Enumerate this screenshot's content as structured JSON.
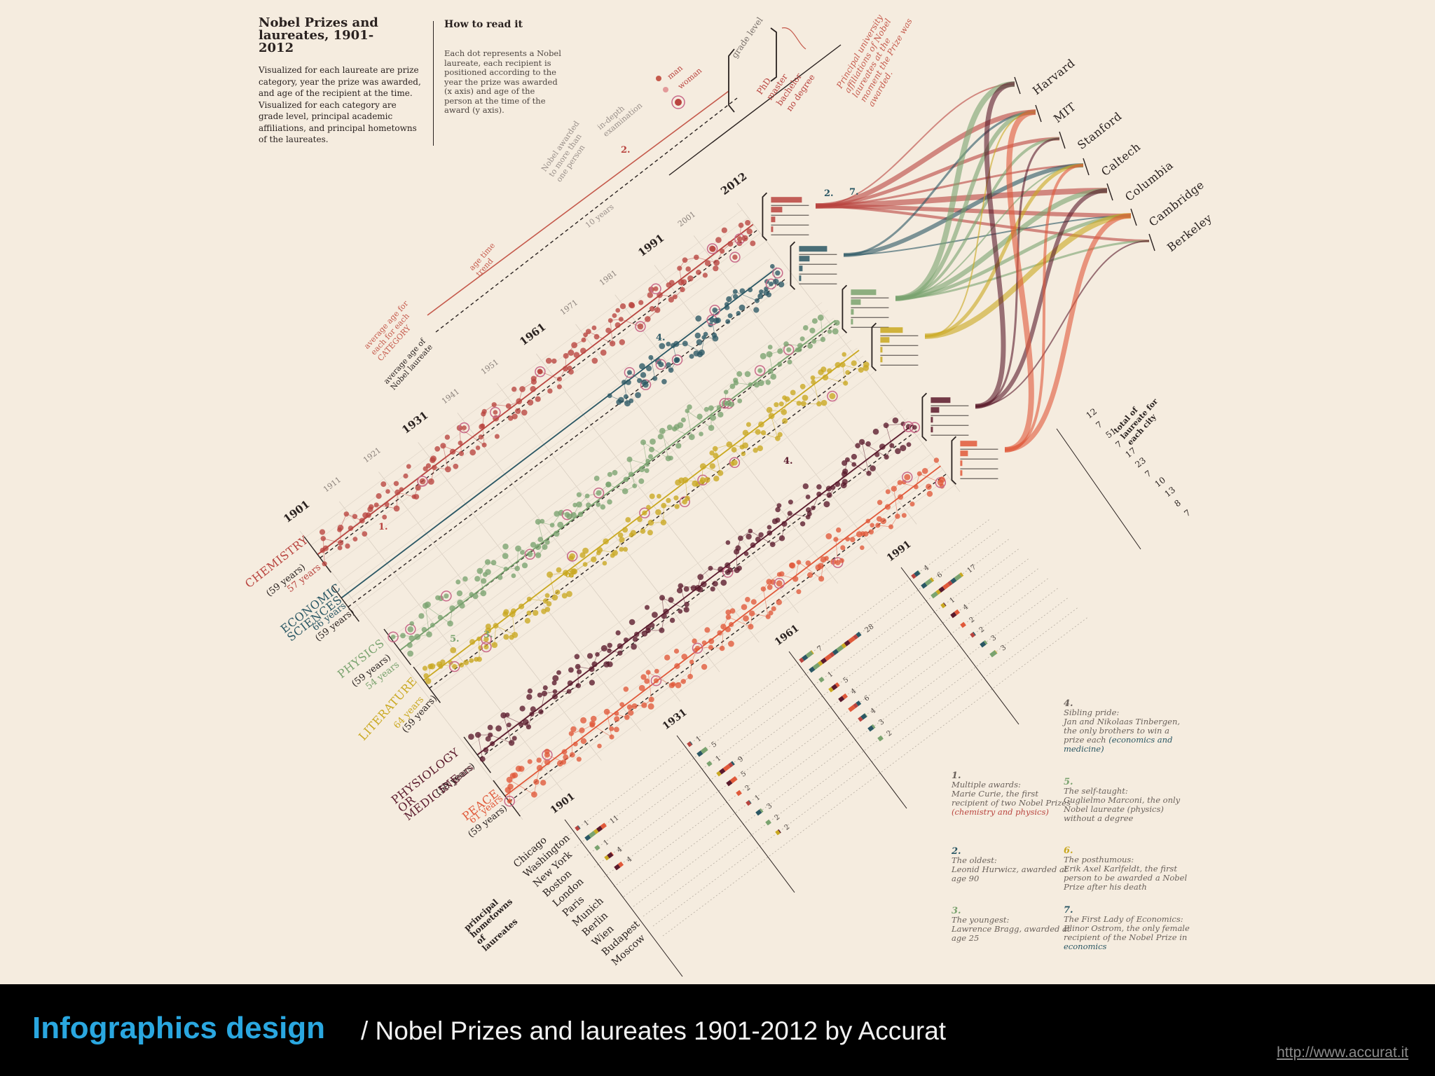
{
  "title": "Nobel Prizes and laureates, 1901-2012",
  "intro": "Visualized for each laureate are prize category, year the prize was awarded, and age of the recipient at the time. Visualized for each category are grade level, principal academic affiliations, and principal hometowns of the laureates.",
  "how_to": {
    "heading": "How to read it",
    "body": "Each dot represents a Nobel laureate, each recipient is positioned according to the year the prize was awarded (x axis) and age of the person at the time of the award (y axis)."
  },
  "legend": {
    "man": "man",
    "woman": "woman",
    "grade_level": "grade level",
    "degrees": [
      "PhD",
      "master",
      "bachelor",
      "no degree"
    ],
    "shared": "Nobel awarded to more than one person",
    "in_depth": "in-depth examination",
    "ten_years": "10 years",
    "age_trend": "age time trend",
    "avg_category": "average age for each for each CATEGORY",
    "avg_laureate": "average age of Nobel laureate",
    "affiliations": "Principal university affiliations of Nobel laureates at the moment the Prize was awarded.",
    "hometowns": "principal hometowns of laureates",
    "city_total": "total of laureate for each city"
  },
  "year_ticks": [
    "1901",
    "1911",
    "1921",
    "1931",
    "1941",
    "1951",
    "1961",
    "1971",
    "1981",
    "1991",
    "2001",
    "2012"
  ],
  "colors": {
    "chemistry": "#b9443f",
    "economics": "#2a5764",
    "physics": "#7aa36f",
    "literature": "#c9a820",
    "medicine": "#5a1a2c",
    "peace": "#e0593a",
    "text": "#2a2220",
    "muted": "#8a807a"
  },
  "categories": [
    {
      "name": "CHEMISTRY",
      "age_all": "(59 years)",
      "age_cat": "57 years",
      "color": "#b9443f"
    },
    {
      "name": "ECONOMIC SCIENCES",
      "age_all": "(59 years)",
      "age_cat": "66 years",
      "color": "#2a5764"
    },
    {
      "name": "PHYSICS",
      "age_all": "(59 years)",
      "age_cat": "54 years",
      "color": "#7aa36f"
    },
    {
      "name": "LITERATURE",
      "age_all": "(59 years)",
      "age_cat": "64 years",
      "color": "#c9a820"
    },
    {
      "name": "PHYSIOLOGY OR MEDICINE",
      "age_all": "(59 years)",
      "age_cat": "57 years",
      "color": "#5a1a2c"
    },
    {
      "name": "PEACE",
      "age_all": "(59 years)",
      "age_cat": "61 years",
      "color": "#e0593a"
    }
  ],
  "universities": [
    "Harvard",
    "MIT",
    "Stanford",
    "Caltech",
    "Columbia",
    "Cambridge",
    "Berkeley"
  ],
  "cities": [
    "Chicago",
    "Washington",
    "New York",
    "Boston",
    "London",
    "Paris",
    "Munich",
    "Berlin",
    "Wien",
    "Budapest",
    "Moscow"
  ],
  "city_totals": [
    "12",
    "7",
    "51",
    "7",
    "17",
    "23",
    "7",
    "10",
    "13",
    "8",
    "7"
  ],
  "decade_counts": {
    "1901": [
      "1",
      "11",
      "1",
      "4",
      "4"
    ],
    "1931": [
      "1",
      "5",
      "1",
      "9",
      "5",
      "2",
      "1",
      "3",
      "2",
      "2"
    ],
    "1961": [
      "7",
      "28",
      "1",
      "5",
      "4",
      "6",
      "4",
      "3",
      "2"
    ],
    "1991": [
      "4",
      "6",
      "17",
      "1",
      "4",
      "2",
      "2",
      "3",
      "3"
    ]
  },
  "markers": [
    "1.",
    "2.",
    "3.",
    "4.",
    "4.",
    "5.",
    "6.",
    "7.",
    "2."
  ],
  "notes": [
    {
      "num": "1.",
      "head": "Multiple awards:",
      "body": "Marie Curie, the first recipient of two Nobel Prizes",
      "extra": "(chemistry and physics)"
    },
    {
      "num": "2.",
      "head": "The oldest:",
      "body": "Leonid Hurwicz, awarded at age 90",
      "extra": ""
    },
    {
      "num": "3.",
      "head": "The youngest:",
      "body": "Lawrence Bragg, awarded at age 25",
      "extra": ""
    },
    {
      "num": "4.",
      "head": "Sibling pride:",
      "body": "Jan and Nikolaas Tinbergen, the only brothers to win a prize each",
      "extra": "(economics and medicine)"
    },
    {
      "num": "5.",
      "head": "The self-taught:",
      "body": "Guglielmo Marconi, the only Nobel laureate",
      "extra": "(physics) without a degree"
    },
    {
      "num": "6.",
      "head": "The posthumous:",
      "body": "Erik Axel Karlfeldt, the first person to be awarded a Nobel Prize after his death",
      "extra": ""
    },
    {
      "num": "7.",
      "head": "The First Lady of Economics:",
      "body": "Elinor Ostrom, the only female recipient of the Nobel Prize in",
      "extra": "economics"
    }
  ],
  "footer": {
    "title": "Infographics design",
    "subtitle": "/ Nobel Prizes and laureates 1901-2012 by Accurat",
    "url": "http://www.accurat.it"
  },
  "chart_data": {
    "type": "scatter",
    "title": "Nobel Prizes and laureates, 1901-2012",
    "x": {
      "label": "year",
      "range": [
        1901,
        2012
      ]
    },
    "y": {
      "label": "age",
      "range": [
        17,
        90
      ]
    },
    "series": [
      {
        "name": "CHEMISTRY",
        "average_age": 57
      },
      {
        "name": "ECONOMIC SCIENCES",
        "average_age": 66
      },
      {
        "name": "PHYSICS",
        "average_age": 54
      },
      {
        "name": "LITERATURE",
        "average_age": 64
      },
      {
        "name": "PHYSIOLOGY OR MEDICINE",
        "average_age": 57
      },
      {
        "name": "PEACE",
        "average_age": 61
      }
    ],
    "overall_average_age": 59
  }
}
